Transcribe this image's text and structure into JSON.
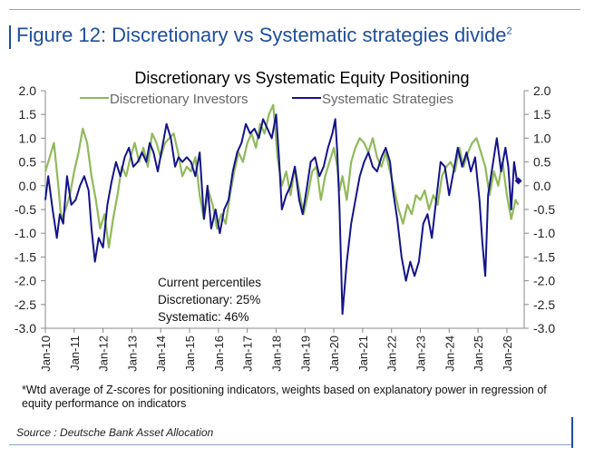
{
  "figure_title": "Figure 12: Discretionary vs Systematic strategies divide",
  "figure_title_sup": "2",
  "footnote": "*Wtd average of Z-scores for positioning indicators, weights based on explanatory power in regression of equity performance on indicators",
  "source": "Source : Deutsche Bank Asset Allocation",
  "annotation": {
    "heading": "Current percentiles",
    "discretionary": "Discretionary: 25%",
    "systematic": "Systematic: 46%"
  },
  "colors": {
    "discretionary": "#8fba5a",
    "systematic": "#14148a",
    "title": "#1f4e9c"
  },
  "chart_data": {
    "type": "line",
    "title": "Discretionary  vs Systematic Equity Positioning",
    "xlabel": "",
    "ylabel": "",
    "ylim": [
      -3.0,
      2.0
    ],
    "xlim": [
      2010.0,
      2026.6
    ],
    "grid": false,
    "legend": "top",
    "yticks": [
      "2.0",
      "1.5",
      "1.0",
      "0.5",
      "0.0",
      "-0.5",
      "-1.0",
      "-1.5",
      "-2.0",
      "-2.5",
      "-3.0"
    ],
    "xticks": [
      "Jan-10",
      "Jan-11",
      "Jan-12",
      "Jan-13",
      "Jan-14",
      "Jan-15",
      "Jan-16",
      "Jan-17",
      "Jan-18",
      "Jan-19",
      "Jan-20",
      "Jan-21",
      "Jan-22",
      "Jan-23",
      "Jan-24",
      "Jan-25",
      "Jan-26"
    ],
    "series": [
      {
        "name": "Discretionary Investors",
        "x": [
          2010.0,
          2010.15,
          2010.3,
          2010.45,
          2010.55,
          2010.7,
          2010.85,
          2011.0,
          2011.15,
          2011.3,
          2011.45,
          2011.6,
          2011.75,
          2011.9,
          2012.05,
          2012.2,
          2012.35,
          2012.5,
          2012.65,
          2012.8,
          2012.95,
          2013.1,
          2013.25,
          2013.4,
          2013.55,
          2013.7,
          2013.85,
          2014.0,
          2014.15,
          2014.3,
          2014.45,
          2014.6,
          2014.75,
          2014.9,
          2015.05,
          2015.2,
          2015.35,
          2015.5,
          2015.65,
          2015.8,
          2015.95,
          2016.1,
          2016.25,
          2016.4,
          2016.55,
          2016.7,
          2016.85,
          2017.0,
          2017.15,
          2017.3,
          2017.45,
          2017.6,
          2017.75,
          2017.9,
          2018.05,
          2018.2,
          2018.35,
          2018.5,
          2018.65,
          2018.8,
          2018.95,
          2019.1,
          2019.25,
          2019.4,
          2019.55,
          2019.7,
          2019.85,
          2020.0,
          2020.12,
          2020.2,
          2020.3,
          2020.45,
          2020.6,
          2020.75,
          2020.9,
          2021.05,
          2021.2,
          2021.35,
          2021.5,
          2021.65,
          2021.8,
          2021.95,
          2022.1,
          2022.25,
          2022.4,
          2022.55,
          2022.7,
          2022.85,
          2023.0,
          2023.15,
          2023.3,
          2023.45,
          2023.6,
          2023.75,
          2023.9,
          2024.05,
          2024.2,
          2024.35,
          2024.5,
          2024.65,
          2024.8,
          2024.95,
          2025.1,
          2025.25,
          2025.4,
          2025.55,
          2025.7,
          2025.85,
          2026.0,
          2026.15,
          2026.3,
          2026.4
        ],
        "y": [
          0.3,
          0.6,
          0.9,
          0.0,
          -0.7,
          -0.5,
          -0.2,
          0.3,
          0.7,
          1.2,
          0.9,
          0.2,
          -0.3,
          -0.9,
          -0.6,
          -1.3,
          -0.7,
          -0.2,
          0.4,
          0.2,
          0.6,
          0.9,
          0.5,
          0.8,
          0.4,
          1.1,
          0.9,
          0.6,
          0.9,
          1.0,
          1.1,
          0.7,
          0.2,
          0.4,
          0.3,
          0.6,
          -0.2,
          -0.7,
          -0.1,
          -0.4,
          -0.9,
          -0.6,
          -0.8,
          -0.2,
          0.3,
          0.7,
          0.5,
          0.9,
          1.1,
          0.8,
          1.3,
          1.1,
          1.5,
          1.7,
          0.6,
          0.0,
          0.3,
          -0.2,
          0.4,
          -0.1,
          -0.6,
          -0.2,
          0.3,
          0.4,
          -0.3,
          0.2,
          0.5,
          0.8,
          0.4,
          -0.1,
          0.2,
          -0.3,
          0.5,
          0.8,
          1.0,
          0.9,
          0.7,
          1.0,
          0.6,
          0.4,
          0.7,
          0.3,
          -0.1,
          -0.5,
          -0.8,
          -0.4,
          -0.6,
          -0.2,
          -0.3,
          -0.1,
          -0.5,
          -0.2,
          -0.4,
          0.2,
          0.4,
          0.5,
          0.3,
          0.8,
          0.4,
          0.7,
          0.9,
          1.0,
          0.7,
          0.4,
          -0.2,
          0.3,
          0.0,
          0.5,
          -0.2,
          -0.7,
          -0.3,
          -0.4
        ]
      },
      {
        "name": "Systematic Strategies",
        "x": [
          2010.0,
          2010.1,
          2010.25,
          2010.4,
          2010.5,
          2010.62,
          2010.75,
          2010.9,
          2011.05,
          2011.2,
          2011.35,
          2011.5,
          2011.6,
          2011.72,
          2011.85,
          2012.0,
          2012.15,
          2012.3,
          2012.45,
          2012.6,
          2012.75,
          2012.9,
          2013.05,
          2013.2,
          2013.35,
          2013.5,
          2013.62,
          2013.75,
          2013.9,
          2014.05,
          2014.2,
          2014.35,
          2014.5,
          2014.62,
          2014.75,
          2014.9,
          2015.05,
          2015.2,
          2015.35,
          2015.5,
          2015.62,
          2015.75,
          2015.9,
          2016.05,
          2016.2,
          2016.35,
          2016.5,
          2016.65,
          2016.8,
          2016.95,
          2017.1,
          2017.25,
          2017.4,
          2017.55,
          2017.7,
          2017.85,
          2018.0,
          2018.1,
          2018.2,
          2018.35,
          2018.5,
          2018.65,
          2018.8,
          2018.92,
          2019.05,
          2019.2,
          2019.35,
          2019.5,
          2019.65,
          2019.8,
          2019.95,
          2020.05,
          2020.12,
          2020.2,
          2020.3,
          2020.45,
          2020.6,
          2020.75,
          2020.9,
          2021.05,
          2021.2,
          2021.35,
          2021.5,
          2021.65,
          2021.8,
          2021.95,
          2022.05,
          2022.2,
          2022.35,
          2022.5,
          2022.65,
          2022.8,
          2022.95,
          2023.1,
          2023.25,
          2023.4,
          2023.55,
          2023.7,
          2023.85,
          2024.0,
          2024.15,
          2024.3,
          2024.45,
          2024.6,
          2024.75,
          2024.9,
          2025.05,
          2025.15,
          2025.25,
          2025.35,
          2025.5,
          2025.65,
          2025.8,
          2025.95,
          2026.05,
          2026.15,
          2026.25,
          2026.35,
          2026.4
        ],
        "y": [
          -0.3,
          0.2,
          -0.5,
          -1.1,
          -0.6,
          -0.8,
          0.2,
          -0.4,
          -0.3,
          0.0,
          0.2,
          -0.1,
          -0.9,
          -1.6,
          -1.1,
          -1.3,
          -0.4,
          0.1,
          0.5,
          0.2,
          0.6,
          0.8,
          0.4,
          0.5,
          0.7,
          0.5,
          0.9,
          0.7,
          0.3,
          0.8,
          1.3,
          1.0,
          0.4,
          0.6,
          0.5,
          0.6,
          0.5,
          0.2,
          0.7,
          -0.7,
          0.0,
          -0.9,
          -0.5,
          -1.0,
          -0.5,
          -0.3,
          0.3,
          0.7,
          0.9,
          1.3,
          1.1,
          1.2,
          1.0,
          1.4,
          1.2,
          1.0,
          1.5,
          0.6,
          -0.5,
          -0.2,
          0.0,
          0.4,
          -0.3,
          -0.6,
          -0.1,
          0.5,
          0.6,
          0.2,
          0.4,
          0.8,
          1.1,
          1.4,
          0.7,
          -0.5,
          -2.7,
          -1.6,
          -0.8,
          -0.3,
          0.2,
          0.5,
          0.7,
          0.4,
          0.3,
          0.6,
          0.8,
          0.5,
          -0.1,
          -0.7,
          -1.5,
          -2.0,
          -1.6,
          -1.9,
          -1.6,
          -0.8,
          -0.6,
          -1.1,
          -0.3,
          0.5,
          0.4,
          -0.2,
          0.3,
          0.8,
          0.4,
          0.7,
          0.3,
          0.6,
          -0.3,
          -1.2,
          -1.9,
          -0.2,
          0.4,
          1.0,
          0.3,
          0.8,
          0.4,
          -0.5,
          0.5,
          0.1,
          0.1
        ]
      }
    ]
  }
}
